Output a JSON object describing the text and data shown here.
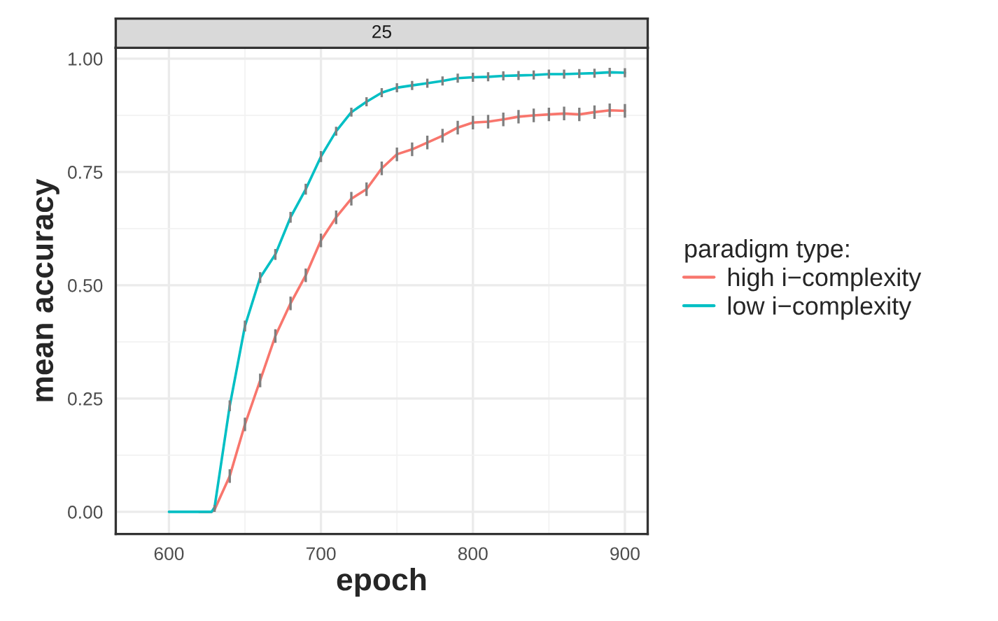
{
  "chart_data": {
    "type": "line",
    "title": "25",
    "xlabel": "epoch",
    "ylabel": "mean accuracy",
    "legend_title": "paradigm type:",
    "legend": "right",
    "grid": true,
    "xlim": [
      565,
      915
    ],
    "xticks": [
      600,
      700,
      800,
      900
    ],
    "ylim": [
      -0.049,
      1.024
    ],
    "yticks": [
      {
        "value": 0,
        "label": "0.00"
      },
      {
        "value": 0.25,
        "label": "0.25"
      },
      {
        "value": 0.5,
        "label": "0.50"
      },
      {
        "value": 0.75,
        "label": "0.75"
      },
      {
        "value": 1,
        "label": "1.00"
      }
    ],
    "series": [
      {
        "name": "high i−complexity",
        "color": "#f8766d",
        "x": [
          620,
          628,
          630,
          640,
          650,
          660,
          670,
          680,
          690,
          700,
          710,
          720,
          730,
          740,
          750,
          760,
          770,
          780,
          790,
          800,
          810,
          820,
          830,
          840,
          850,
          860,
          870,
          880,
          890,
          900
        ],
        "values": [
          0,
          0,
          0.005,
          0.079,
          0.193,
          0.29,
          0.388,
          0.46,
          0.522,
          0.599,
          0.65,
          0.691,
          0.712,
          0.758,
          0.789,
          0.8,
          0.815,
          0.83,
          0.848,
          0.859,
          0.861,
          0.866,
          0.872,
          0.875,
          0.877,
          0.879,
          0.877,
          0.882,
          0.886,
          0.885
        ],
        "errors": [
          null,
          null,
          0.005,
          0.015,
          0.015,
          0.015,
          0.015,
          0.015,
          0.015,
          0.015,
          0.015,
          0.015,
          0.015,
          0.015,
          0.015,
          0.015,
          0.015,
          0.015,
          0.015,
          0.015,
          0.015,
          0.015,
          0.015,
          0.015,
          0.015,
          0.015,
          0.015,
          0.015,
          0.015,
          0.015
        ]
      },
      {
        "name": "low i−complexity",
        "color": "#00bfc4",
        "x": [
          600,
          610,
          620,
          628,
          630,
          640,
          650,
          660,
          670,
          680,
          690,
          700,
          710,
          720,
          730,
          740,
          750,
          760,
          770,
          780,
          790,
          800,
          810,
          820,
          830,
          840,
          850,
          860,
          870,
          880,
          890,
          900
        ],
        "values": [
          0,
          0,
          0,
          0,
          0.01,
          0.234,
          0.41,
          0.517,
          0.568,
          0.65,
          0.712,
          0.784,
          0.84,
          0.882,
          0.905,
          0.925,
          0.936,
          0.941,
          0.946,
          0.951,
          0.957,
          0.959,
          0.96,
          0.962,
          0.963,
          0.964,
          0.966,
          0.966,
          0.967,
          0.968,
          0.97,
          0.969
        ],
        "errors": [
          null,
          null,
          null,
          null,
          0.005,
          0.012,
          0.012,
          0.012,
          0.012,
          0.012,
          0.012,
          0.012,
          0.01,
          0.01,
          0.01,
          0.01,
          0.01,
          0.01,
          0.01,
          0.01,
          0.01,
          0.01,
          0.01,
          0.01,
          0.01,
          0.01,
          0.01,
          0.01,
          0.01,
          0.01,
          0.01,
          0.01
        ]
      }
    ]
  }
}
